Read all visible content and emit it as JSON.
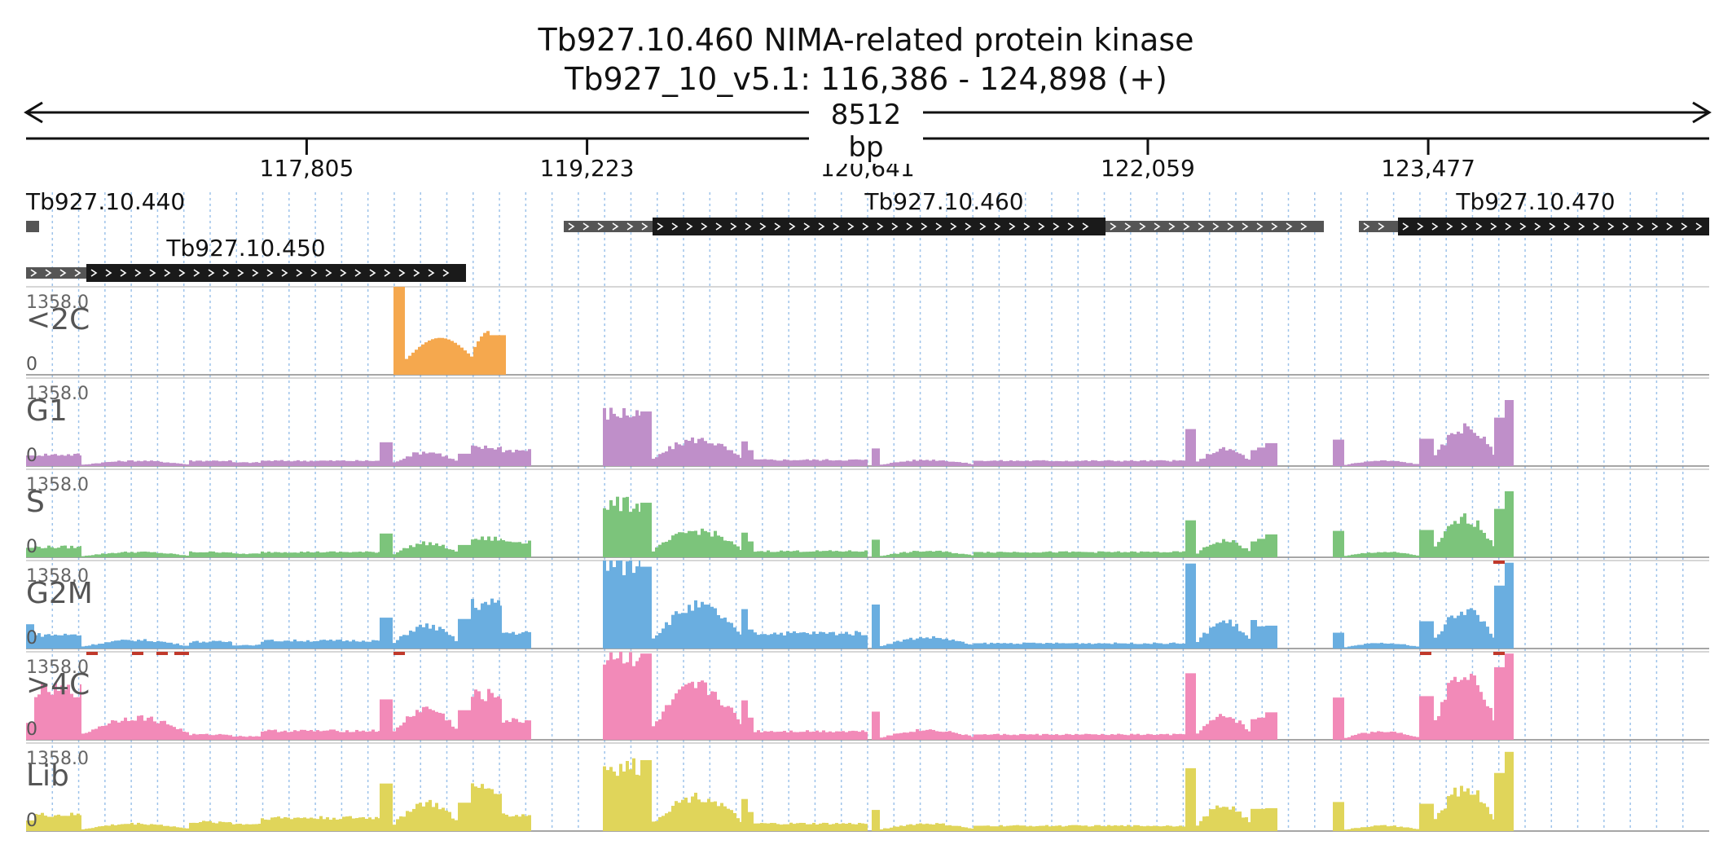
{
  "header": {
    "gene_line": "Tb927.10.460  NIMA-related protein kinase",
    "locus_line": "Tb927_10_v5.1: 116,386 - 124,898 (+)",
    "span_label": "8512 bp"
  },
  "ruler": {
    "ticks": [
      "117,805",
      "119,223",
      "120,641",
      "122,059",
      "123,477"
    ]
  },
  "genes": [
    {
      "name": "Tb927.10.440",
      "label": "Tb927.10.440"
    },
    {
      "name": "Tb927.10.450",
      "label": "Tb927.10.450"
    },
    {
      "name": "Tb927.10.460",
      "label": "Tb927.10.460"
    },
    {
      "name": "Tb927.10.470",
      "label": "Tb927.10.470"
    }
  ],
  "tracks": [
    {
      "name": "<2C",
      "max_label": "1358.0",
      "min_label": "0",
      "color": "#f5a84e"
    },
    {
      "name": "G1",
      "max_label": "1358.0",
      "min_label": "0",
      "color": "#bf8fc9"
    },
    {
      "name": "S",
      "max_label": "1358.0",
      "min_label": "0",
      "color": "#7cc47b"
    },
    {
      "name": "G2M",
      "max_label": "1358.0",
      "min_label": "0",
      "color": "#6aaee0"
    },
    {
      "name": ">4C",
      "max_label": "1358.0",
      "min_label": "0",
      "color": "#f28ab8"
    },
    {
      "name": "Lib",
      "max_label": "1358.0",
      "min_label": "0",
      "color": "#e0d55a"
    }
  ]
}
